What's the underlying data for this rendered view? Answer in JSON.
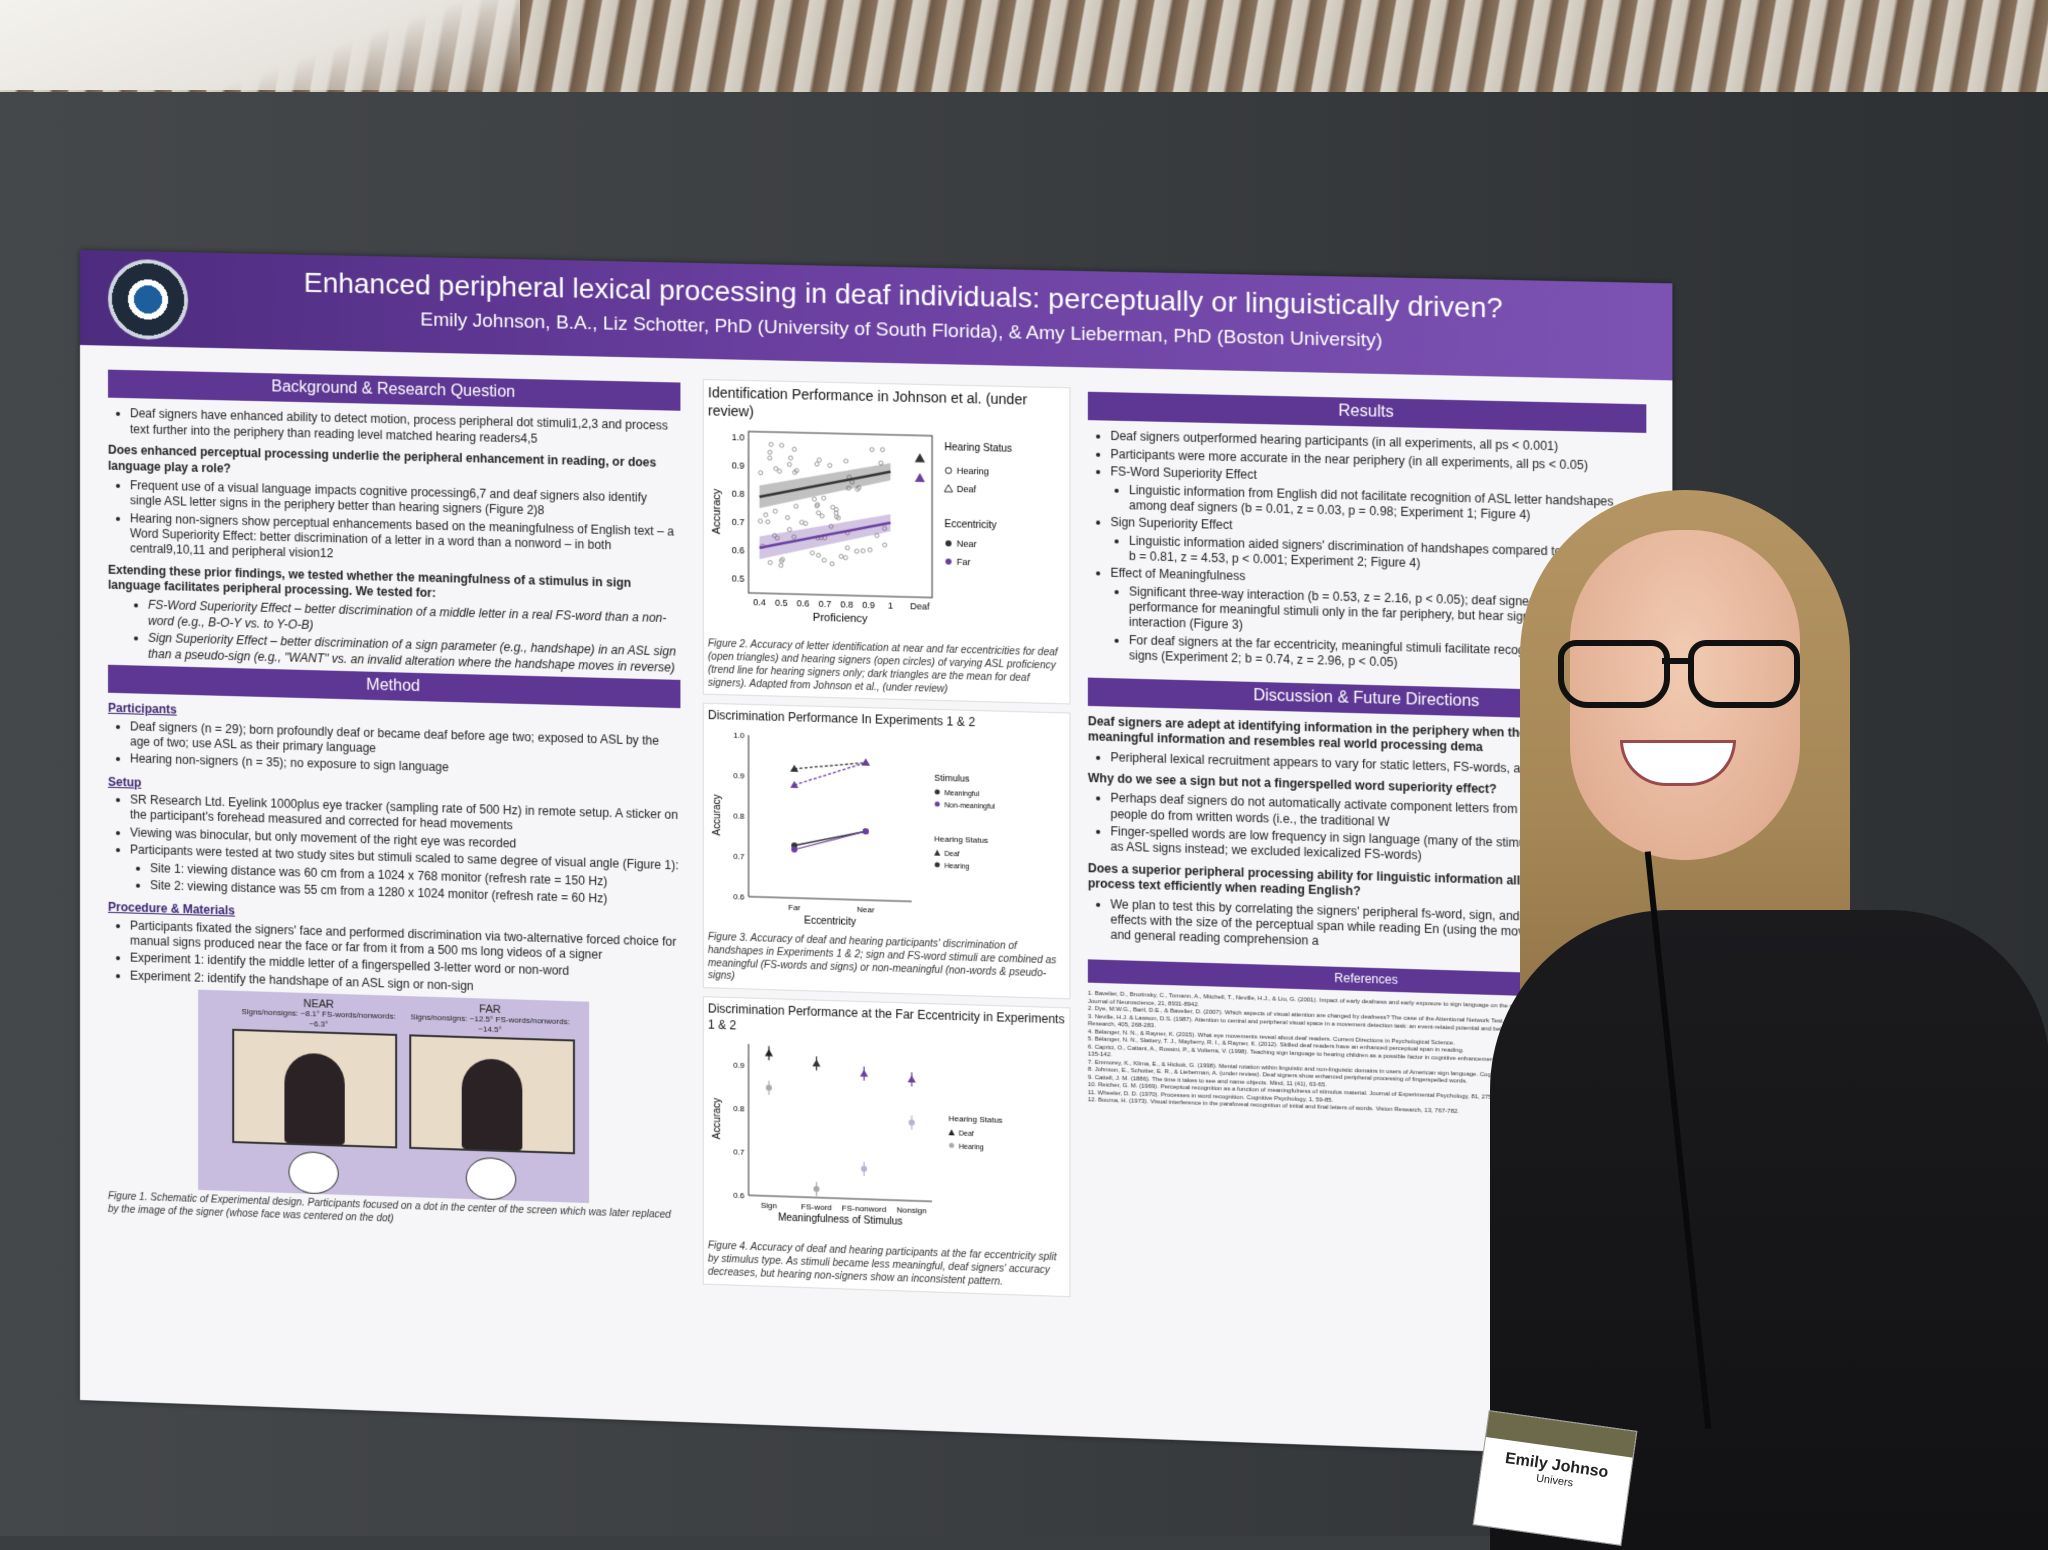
{
  "poster": {
    "title": "Enhanced peripheral lexical processing in deaf individuals: perceptually or linguistically driven?",
    "authors": "Emily Johnson, B.A., Liz Schotter, PhD (University of South Florida), & Amy Lieberman, PhD (Boston University)",
    "background": {
      "heading": "Background & Research Question",
      "b1": "Deaf signers have enhanced ability to detect motion, process peripheral dot stimuli1,2,3 and process text further into the periphery than reading level matched hearing readers4,5",
      "q1": "Does enhanced perceptual processing underlie the peripheral enhancement in reading, or does language play a role?",
      "b2": "Frequent use of a visual language impacts cognitive processing6,7 and deaf signers also identify single ASL letter signs in the periphery better than hearing signers (Figure 2)8",
      "b3": "Hearing non-signers show perceptual enhancements based on the meaningfulness of English text – a Word Superiority Effect: better discrimination of a letter in a word than a nonword – in both central9,10,11 and peripheral vision12",
      "q2": "Extending these prior findings, we tested whether the meaningfulness of a stimulus in sign language facilitates peripheral processing. We tested for:",
      "s1": "FS-Word Superiority Effect – better discrimination of a middle letter in a real FS-word than a non-word (e.g., B-O-Y vs. to Y-O-B)",
      "s2": "Sign Superiority Effect – better discrimination of a sign parameter (e.g., handshape) in an ASL sign than a pseudo-sign (e.g., \"WANT\" vs. an invalid alteration where the handshape moves in reverse)"
    },
    "method": {
      "heading": "Method",
      "participants_head": "Participants",
      "p1": "Deaf signers (n = 29); born profoundly deaf or became deaf before age two; exposed to ASL by the age of two; use ASL as their primary language",
      "p2": "Hearing non-signers (n = 35); no exposure to sign language",
      "setup_head": "Setup",
      "s1": "SR Research Ltd. Eyelink 1000plus eye tracker (sampling rate of 500 Hz) in remote setup. A sticker on the participant's forehead measured and corrected for head movements",
      "s2": "Viewing was binocular, but only movement of the right eye was recorded",
      "s3": "Participants were tested at two study sites but stimuli scaled to same degree of visual angle (Figure 1):",
      "s4": "Site 1: viewing distance was 60 cm from a 1024 x 768 monitor (refresh rate = 150 Hz)",
      "s5": "Site 2: viewing distance was 55 cm from a 1280 x 1024 monitor (refresh rate = 60 Hz)",
      "proc_head": "Procedure & Materials",
      "m1": "Participants fixated the signers' face and performed discrimination via two-alternative forced choice for manual signs produced near the face or far from it from a 500 ms long videos of a signer",
      "m2": "Experiment 1: identify the middle letter of a fingerspelled 3-letter word or non-word",
      "m3": "Experiment 2: identify the handshape of an ASL sign or non-sign",
      "near_label": "NEAR",
      "near_sub": "Signs/nonsigns: ~8.1° FS-words/nonwords: ~6.3°",
      "far_label": "FAR",
      "far_sub": "Signs/nonsigns: ~12.5° FS-words/nonwords: ~14.5°",
      "fig1_caption": "Figure 1. Schematic of Experimental design. Participants focused on a dot in the center of the screen which was later replaced by the image of the signer (whose face was centered on the dot)"
    },
    "fig2": {
      "title": "Identification Performance in Johnson et al. (under review)",
      "ylabel": "Accuracy",
      "xlabel": "Proficiency",
      "legend_hs": "Hearing Status",
      "legend_hearing": "Hearing",
      "legend_deaf": "Deaf",
      "legend_ecc": "Eccentricity",
      "legend_near": "Near",
      "legend_far": "Far",
      "caption": "Figure 2. Accuracy of letter identification at near and far eccentricities for deaf (open triangles) and hearing signers (open circles) of varying ASL proficiency (trend line for hearing signers only; dark triangles are the mean for deaf signers). Adapted from Johnson et al., (under review)"
    },
    "fig3": {
      "title": "Discrimination Performance In Experiments 1 & 2",
      "ylabel": "Accuracy",
      "xlabel": "Eccentricity",
      "legend_stim": "Stimulus",
      "legend_meaningful": "Meaningful",
      "legend_nonmeaningful": "Non-meaningful",
      "legend_hs": "Hearing Status",
      "legend_deaf": "Deaf",
      "legend_hearing": "Hearing",
      "caption": "Figure 3. Accuracy of deaf and hearing participants' discrimination of handshapes in Experiments 1 & 2; sign and FS-word stimuli are combined as meaningful (FS-words and signs) or non-meaningful (non-words & pseudo-signs)"
    },
    "fig4": {
      "title": "Discrimination Performance at the Far Eccentricity in Experiments 1 & 2",
      "ylabel": "Accuracy",
      "xlabel": "Meaningfulness of Stimulus",
      "legend_hs": "Hearing Status",
      "legend_deaf": "Deaf",
      "legend_hearing": "Hearing",
      "caption": "Figure 4. Accuracy of deaf and hearing participants at the far eccentricity split by stimulus type. As stimuli became less meaningful, deaf signers' accuracy decreases, but hearing non-signers show an inconsistent pattern."
    },
    "results": {
      "heading": "Results",
      "r1": "Deaf signers outperformed hearing participants (in all experiments, all ps < 0.001)",
      "r2": "Participants were more accurate in the near periphery (in all experiments, all ps < 0.05)",
      "r3": "FS-Word Superiority Effect",
      "r3a": "Linguistic information from English did not facilitate recognition of ASL letter handshapes among deaf signers (b = 0.01, z = 0.03, p = 0.98; Experiment 1; Figure 4)",
      "r4": "Sign Superiority Effect",
      "r4a": "Linguistic information aided signers' discrimination of handshapes compared to n sign stimuli; b = 0.81, z = 4.53, p < 0.001; Experiment 2; Figure 4)",
      "r5": "Effect of Meaningfulness",
      "r5a": "Significant three-way interaction (b = 0.53, z = 2.16, p < 0.05); deaf signers s better performance for meaningful stimuli only in the far periphery, but hear signers did not show an interaction (Figure 3)",
      "r5b": "For deaf signers at the far eccentricity, meaningful stimuli facilitate recogniti especially for ASL signs (Experiment 2; b = 0.74, z = 2.96, p < 0.05)"
    },
    "discussion": {
      "heading": "Discussion & Future Directions",
      "d1": "Deaf signers are adept at identifying information in the periphery when the task c linguistically meaningful information and resembles real world processing dema",
      "d1a": "Peripheral lexical recruitment appears to vary for static letters, FS-words, and",
      "q1": "Why do we see a sign but not a fingerspelled word superiority effect?",
      "d2": "Perhaps deaf signers do not automatically activate component letters from words the way hearing people do from written words (i.e., the traditional W",
      "d3": "Finger-spelled words are low frequency in sign language (many of the stimuli we be represented as ASL signs instead; we excluded lexicalized FS-words)",
      "q2": "Does a superior peripheral processing ability for linguistic information allow skilled readers to process text efficiently when reading English?",
      "d4": "We plan to test this by correlating the signers' peripheral fs-word, sign, and En word superiority effects with the size of the perceptual span while reading En (using the moving window paradigm) and general reading comprehension a"
    },
    "references": {
      "heading": "References",
      "items": [
        "1. Bavelier, D., Brozinsky, C., Tomann, A., Mitchell, T., Neville, H.J., & Liu, G. (2001). Impact of early deafness and early exposure to sign language on the cerebral organization for motion processing. Journal of Neuroscience, 21, 8931-8942.",
        "2. Dye, M.W.G., Baril, D.E., & Bavelier, D. (2007). Which aspects of visual attention are changed by deafness? The case of the Attentional Network Test. Neuropsychologia, 45, 1801-1811.",
        "3. Neville, H.J. & Lawson, D.S. (1987). Attention to central and peripheral visual space in a movement detection task: an event-related potential and behavioral study. II. Congenitally deaf adults. Brain Research, 405, 268-283.",
        "4. Bélanger, N. N., & Rayner, K. (2015). What eye movements reveal about deaf readers. Current Directions in Psychological Science.",
        "5. Bélanger, N. N., Slattery, T. J., Mayberry, R. I., & Rayner, K. (2012). Skilled deaf readers have an enhanced perceptual span in reading.",
        "6. Caprici, O., Cattani, A., Rossini, P., & Volterra, V. (1998). Teaching sign language to hearing children as a possible factor in cognitive enhancement. Journal of Deaf Studies and Deaf Education, 3(2), 135-142.",
        "7. Emmorey, K., Klima, E., & Hickok, G. (1998). Mental rotation within linguistic and non-linguistic domains in users of American sign language. Cognition, 68(3), 221-246.",
        "8. Johnson, E., Schotter, E. R., & Lieberman, A. (under review). Deaf signers show enhanced peripheral processing of fingerspelled words.",
        "9. Cattell, J. M. (1886). The time it takes to see and name objects. Mind, 11 (41), 63-65.",
        "10. Reicher, G. M. (1969). Perceptual recognition as a function of meaningfulness of stimulus material. Journal of Experimental Psychology, 81, 275-280.",
        "11. Wheeler, D. D. (1970). Processes in word recognition. Cognitive Psychology, 1, 59-85.",
        "12. Bouma, H. (1973). Visual interference in the parafoveal recognition of initial and final letters of words. Vision Research, 13, 767-782."
      ]
    }
  },
  "badge": {
    "name": "Emily Johnso",
    "org": "Univers"
  },
  "chart_data": [
    {
      "type": "scatter",
      "title": "Identification Performance in Johnson et al. (under review)",
      "xlabel": "Proficiency",
      "ylabel": "Accuracy",
      "x_ticks": [
        "0.4",
        "0.5",
        "0.6",
        "0.7",
        "0.8",
        "0.9",
        "1",
        "Deaf"
      ],
      "y_ticks": [
        "0.5",
        "0.6",
        "0.7",
        "0.8",
        "0.9",
        "1.0"
      ],
      "ylim": [
        0.45,
        1.02
      ],
      "series": [
        {
          "name": "Near",
          "color": "#333333",
          "trend": [
            [
              0.4,
              0.79
            ],
            [
              1.0,
              0.89
            ]
          ],
          "deaf_mean": 0.94
        },
        {
          "name": "Far",
          "color": "#6a3fa0",
          "trend": [
            [
              0.4,
              0.61
            ],
            [
              1.0,
              0.71
            ]
          ],
          "deaf_mean": 0.87
        }
      ]
    },
    {
      "type": "line",
      "title": "Discrimination Performance In Experiments 1 & 2",
      "xlabel": "Eccentricity",
      "ylabel": "Accuracy",
      "categories": [
        "Far",
        "Near"
      ],
      "y_ticks": [
        "0.6",
        "0.7",
        "0.8",
        "0.9",
        "1.0"
      ],
      "ylim": [
        0.6,
        1.0
      ],
      "series": [
        {
          "name": "Deaf Meaningful",
          "values": [
            0.92,
            0.94
          ],
          "color": "#333333",
          "dash": true
        },
        {
          "name": "Deaf Non-meaningful",
          "values": [
            0.88,
            0.94
          ],
          "color": "#6a3fa0",
          "dash": true
        },
        {
          "name": "Hearing Meaningful",
          "values": [
            0.73,
            0.77
          ],
          "color": "#333333",
          "dash": false
        },
        {
          "name": "Hearing Non-meaningful",
          "values": [
            0.72,
            0.77
          ],
          "color": "#6a3fa0",
          "dash": false
        }
      ]
    },
    {
      "type": "scatter",
      "title": "Discrimination Performance at the Far Eccentricity in Experiments 1 & 2",
      "xlabel": "Meaningfulness of Stimulus",
      "ylabel": "Accuracy",
      "categories": [
        "Sign",
        "FS-word",
        "FS-nonword",
        "Nonsign"
      ],
      "y_ticks": [
        "0.6",
        "0.7",
        "0.8",
        "0.9"
      ],
      "ylim": [
        0.6,
        0.95
      ],
      "series": [
        {
          "name": "Deaf",
          "values": [
            0.93,
            0.91,
            0.89,
            0.88
          ],
          "colors": [
            "#222222",
            "#333333",
            "#6a3fa0",
            "#6a3fa0"
          ]
        },
        {
          "name": "Hearing",
          "values": [
            0.85,
            0.62,
            0.67,
            0.78
          ],
          "colors": [
            "#aaaaaa",
            "#aaaaaa",
            "#bbb0d4",
            "#bbb0d4"
          ]
        }
      ]
    }
  ]
}
